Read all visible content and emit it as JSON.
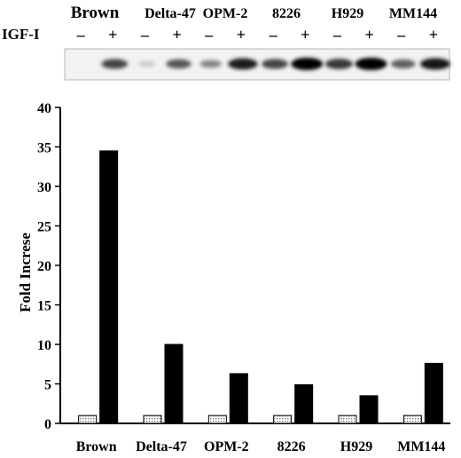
{
  "blot": {
    "row_label": "IGF-I",
    "cell_lines": [
      "Brown",
      "Delta-47",
      "OPM-2",
      "8226",
      "H929",
      "MM144"
    ],
    "treatment_signs": [
      "–",
      "+"
    ],
    "band_intensity": [
      [
        0.06,
        0.72
      ],
      [
        0.22,
        0.66
      ],
      [
        0.48,
        0.88
      ],
      [
        0.72,
        1.0
      ],
      [
        0.78,
        1.0
      ],
      [
        0.62,
        0.9
      ]
    ]
  },
  "chart_data": {
    "type": "bar",
    "title": "",
    "xlabel": "",
    "ylabel": "Fold Increse",
    "ylim": [
      0,
      40
    ],
    "yticks": [
      0,
      5,
      10,
      15,
      20,
      25,
      30,
      35,
      40
    ],
    "grid": false,
    "legend": "none",
    "categories": [
      "Brown",
      "Delta-47",
      "OPM-2",
      "8226",
      "H929",
      "MM144"
    ],
    "series": [
      {
        "key": "minus",
        "values": [
          1,
          1,
          1,
          1,
          1,
          1
        ],
        "color": "#d8d8d8",
        "pattern": "dotted-hatch"
      },
      {
        "key": "plus",
        "values": [
          34.5,
          10,
          6.3,
          4.9,
          3.5,
          7.6
        ],
        "color": "#000000",
        "pattern": "solid"
      }
    ]
  }
}
